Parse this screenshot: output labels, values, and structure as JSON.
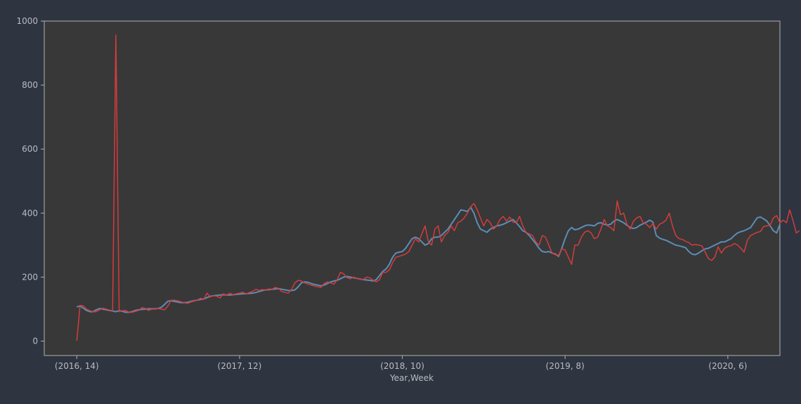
{
  "chart_data": {
    "type": "line",
    "title": "",
    "xlabel": "Year,Week",
    "ylabel": "",
    "ylim": [
      -45,
      1000
    ],
    "y_ticks": [
      0,
      200,
      400,
      600,
      800,
      1000
    ],
    "x_ticks": [
      "(2016, 14)",
      "(2017, 12)",
      "(2018, 10)",
      "(2019, 8)",
      "(2020, 6)"
    ],
    "x_tick_index": [
      0,
      50,
      100,
      150,
      200
    ],
    "x_range": [
      -10,
      216
    ],
    "grid": false,
    "legend": "none",
    "background": "#383838",
    "series": [
      {
        "color": "#5b8db8",
        "values": [
          107,
          110,
          103,
          96,
          92,
          92,
          98,
          102,
          100,
          98,
          96,
          94,
          92,
          95,
          93,
          90,
          90,
          92,
          96,
          98,
          99,
          100,
          101,
          101,
          101,
          102,
          106,
          115,
          125,
          126,
          124,
          122,
          120,
          120,
          121,
          124,
          126,
          128,
          130,
          132,
          136,
          140,
          142,
          143,
          144,
          145,
          144,
          144,
          145,
          146,
          147,
          148,
          148,
          149,
          150,
          152,
          155,
          158,
          160,
          161,
          162,
          163,
          164,
          162,
          160,
          158,
          158,
          160,
          170,
          182,
          185,
          184,
          180,
          177,
          175,
          173,
          175,
          180,
          185,
          188,
          190,
          195,
          200,
          202,
          200,
          198,
          196,
          194,
          192,
          191,
          190,
          188,
          192,
          205,
          218,
          225,
          240,
          262,
          275,
          278,
          280,
          290,
          305,
          320,
          325,
          320,
          310,
          300,
          305,
          320,
          325,
          325,
          330,
          340,
          350,
          365,
          380,
          395,
          410,
          408,
          405,
          418,
          400,
          370,
          350,
          345,
          340,
          350,
          355,
          360,
          362,
          365,
          370,
          375,
          380,
          370,
          358,
          345,
          340,
          330,
          318,
          305,
          290,
          280,
          278,
          280,
          275,
          272,
          265,
          290,
          320,
          345,
          355,
          348,
          350,
          355,
          360,
          363,
          362,
          360,
          368,
          370,
          365,
          363,
          365,
          375,
          380,
          375,
          370,
          362,
          355,
          352,
          355,
          362,
          367,
          372,
          378,
          372,
          330,
          322,
          318,
          315,
          310,
          305,
          300,
          298,
          295,
          292,
          280,
          272,
          270,
          275,
          282,
          288,
          290,
          295,
          300,
          305,
          310,
          310,
          315,
          320,
          330,
          338,
          342,
          345,
          350,
          355,
          370,
          385,
          388,
          382,
          375,
          360,
          345,
          338,
          365
        ]
      },
      {
        "color": "#d43c3c",
        "values": [
          1,
          112,
          110,
          100,
          95,
          92,
          92,
          98,
          103,
          100,
          97,
          95,
          956,
          92,
          95,
          96,
          90,
          90,
          93,
          96,
          105,
          102,
          96,
          100,
          100,
          102,
          100,
          98,
          110,
          128,
          128,
          126,
          123,
          120,
          118,
          122,
          125,
          128,
          134,
          130,
          150,
          138,
          142,
          140,
          135,
          148,
          143,
          150,
          145,
          148,
          150,
          153,
          147,
          152,
          155,
          162,
          158,
          161,
          160,
          163,
          162,
          168,
          164,
          155,
          152,
          150,
          162,
          182,
          190,
          188,
          182,
          178,
          175,
          172,
          170,
          168,
          180,
          185,
          182,
          178,
          192,
          215,
          210,
          198,
          195,
          200,
          196,
          194,
          192,
          200,
          198,
          190,
          185,
          192,
          215,
          215,
          222,
          245,
          262,
          265,
          268,
          272,
          280,
          300,
          320,
          310,
          335,
          360,
          310,
          300,
          350,
          360,
          310,
          330,
          340,
          360,
          345,
          370,
          375,
          385,
          400,
          420,
          430,
          410,
          385,
          360,
          380,
          370,
          350,
          360,
          380,
          390,
          375,
          388,
          372,
          370,
          390,
          360,
          340,
          335,
          330,
          310,
          300,
          330,
          325,
          300,
          275,
          270,
          268,
          288,
          285,
          262,
          240,
          300,
          300,
          325,
          340,
          345,
          338,
          320,
          325,
          350,
          380,
          360,
          355,
          345,
          438,
          395,
          400,
          365,
          350,
          375,
          385,
          390,
          370,
          365,
          355,
          368,
          350,
          365,
          370,
          378,
          400,
          360,
          330,
          320,
          318,
          312,
          308,
          300,
          302,
          300,
          298,
          280,
          258,
          252,
          262,
          295,
          275,
          290,
          296,
          298,
          305,
          300,
          290,
          278,
          315,
          330,
          335,
          340,
          342,
          358,
          360,
          362,
          385,
          392,
          370,
          378,
          370,
          410,
          378,
          338,
          345
        ]
      }
    ]
  }
}
